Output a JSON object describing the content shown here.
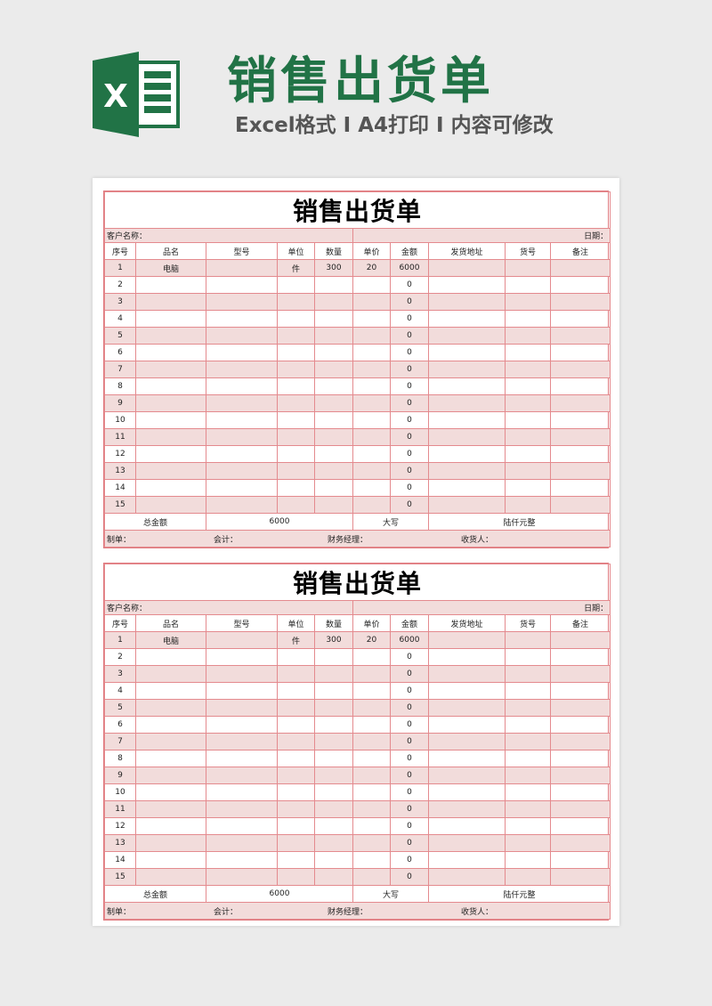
{
  "banner": {
    "title": "销售出货单",
    "subtitle": "Excel格式 I A4打印 I 内容可修改",
    "logo_letter": "X",
    "brand_color": "#217346"
  },
  "colors": {
    "row_shade": "#f2dcdb",
    "grid": "#e48a8e"
  },
  "form": {
    "title": "销售出货单",
    "customer_label": "客户名称：",
    "date_label": "日期：",
    "headers": [
      "序号",
      "品名",
      "型号",
      "单位",
      "数量",
      "单价",
      "金额",
      "发货地址",
      "货号",
      "备注"
    ],
    "rows": [
      [
        "1",
        "电脑",
        "",
        "件",
        "300",
        "20",
        "6000",
        "",
        "",
        ""
      ],
      [
        "2",
        "",
        "",
        "",
        "",
        "",
        "0",
        "",
        "",
        ""
      ],
      [
        "3",
        "",
        "",
        "",
        "",
        "",
        "0",
        "",
        "",
        ""
      ],
      [
        "4",
        "",
        "",
        "",
        "",
        "",
        "0",
        "",
        "",
        ""
      ],
      [
        "5",
        "",
        "",
        "",
        "",
        "",
        "0",
        "",
        "",
        ""
      ],
      [
        "6",
        "",
        "",
        "",
        "",
        "",
        "0",
        "",
        "",
        ""
      ],
      [
        "7",
        "",
        "",
        "",
        "",
        "",
        "0",
        "",
        "",
        ""
      ],
      [
        "8",
        "",
        "",
        "",
        "",
        "",
        "0",
        "",
        "",
        ""
      ],
      [
        "9",
        "",
        "",
        "",
        "",
        "",
        "0",
        "",
        "",
        ""
      ],
      [
        "10",
        "",
        "",
        "",
        "",
        "",
        "0",
        "",
        "",
        ""
      ],
      [
        "11",
        "",
        "",
        "",
        "",
        "",
        "0",
        "",
        "",
        ""
      ],
      [
        "12",
        "",
        "",
        "",
        "",
        "",
        "0",
        "",
        "",
        ""
      ],
      [
        "13",
        "",
        "",
        "",
        "",
        "",
        "0",
        "",
        "",
        ""
      ],
      [
        "14",
        "",
        "",
        "",
        "",
        "",
        "0",
        "",
        "",
        ""
      ],
      [
        "15",
        "",
        "",
        "",
        "",
        "",
        "0",
        "",
        "",
        ""
      ]
    ],
    "total_label": "总金额",
    "total_value": "6000",
    "capital_label": "大写",
    "capital_value": "陆仟元整",
    "signatures": [
      "制单：",
      "会计：",
      "财务经理：",
      "收货人："
    ]
  },
  "form_copies": 2
}
